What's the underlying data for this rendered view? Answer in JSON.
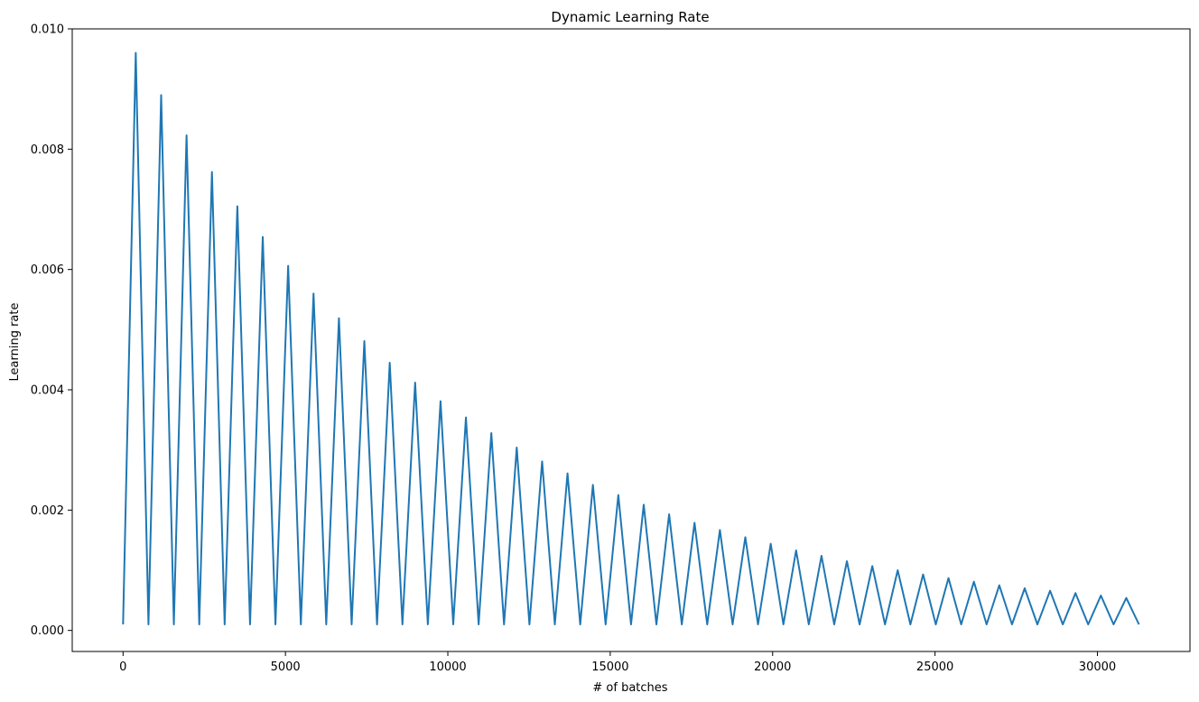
{
  "chart_data": {
    "type": "line",
    "title": "Dynamic Learning Rate",
    "xlabel": "# of batches",
    "ylabel": "Learning rate",
    "xlim": [
      -1565,
      32850
    ],
    "ylim": [
      -0.00035,
      0.01
    ],
    "x_ticks": [
      0,
      5000,
      10000,
      15000,
      20000,
      25000,
      30000
    ],
    "x_tick_labels": [
      "0",
      "5000",
      "10000",
      "15000",
      "20000",
      "25000",
      "30000"
    ],
    "y_ticks": [
      0.0,
      0.002,
      0.004,
      0.006,
      0.008,
      0.01
    ],
    "y_tick_labels": [
      "0.000",
      "0.002",
      "0.004",
      "0.006",
      "0.008",
      "0.010"
    ],
    "grid": false,
    "legend": "none",
    "series": [
      {
        "color": "#1f77b4",
        "x": [
          0,
          391,
          782,
          1173,
          1564,
          1955,
          2346,
          2737,
          3128,
          3519,
          3910,
          4301,
          4692,
          5083,
          5474,
          5865,
          6256,
          6647,
          7038,
          7429,
          7820,
          8211,
          8602,
          8993,
          9384,
          9775,
          10166,
          10557,
          10948,
          11339,
          11730,
          12121,
          12512,
          12903,
          13294,
          13685,
          14076,
          14467,
          14858,
          15249,
          15640,
          16031,
          16422,
          16813,
          17204,
          17595,
          17986,
          18377,
          18768,
          19159,
          19550,
          19941,
          20332,
          20723,
          21114,
          21505,
          21896,
          22287,
          22678,
          23069,
          23460,
          23851,
          24242,
          24633,
          25024,
          25415,
          25806,
          26197,
          26588,
          26979,
          27370,
          27761,
          28152,
          28543,
          28934,
          29325,
          29716,
          30107,
          30498,
          30889,
          31280
        ],
        "y": [
          0.0001,
          0.0096,
          0.0001,
          0.0089,
          0.0001,
          0.00823,
          0.0001,
          0.00762,
          0.0001,
          0.00705,
          0.0001,
          0.00654,
          0.0001,
          0.00606,
          0.0001,
          0.0056,
          0.0001,
          0.00519,
          0.0001,
          0.00481,
          0.0001,
          0.00445,
          0.0001,
          0.00412,
          0.0001,
          0.00381,
          0.0001,
          0.00354,
          0.0001,
          0.00328,
          0.0001,
          0.00304,
          0.0001,
          0.00281,
          0.0001,
          0.00261,
          0.0001,
          0.00242,
          0.0001,
          0.00225,
          0.0001,
          0.00209,
          0.0001,
          0.00193,
          0.0001,
          0.00179,
          0.0001,
          0.00167,
          0.0001,
          0.00155,
          0.0001,
          0.00144,
          0.0001,
          0.00133,
          0.0001,
          0.00124,
          0.0001,
          0.00115,
          0.0001,
          0.00107,
          0.0001,
          0.001,
          0.0001,
          0.00093,
          0.0001,
          0.00087,
          0.0001,
          0.00081,
          0.0001,
          0.00075,
          0.0001,
          0.0007,
          0.0001,
          0.00066,
          0.0001,
          0.00062,
          0.0001,
          0.00058,
          0.0001,
          0.00054,
          0.0001
        ]
      }
    ]
  }
}
